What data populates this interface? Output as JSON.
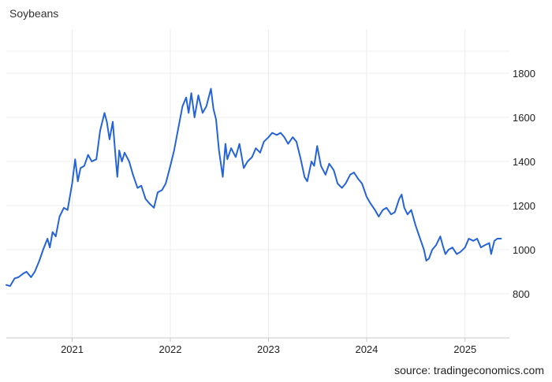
{
  "chart_data": {
    "type": "line",
    "title": "Soybeans",
    "source": "source: tradingeconomics.com",
    "xlabel": "",
    "ylabel": "",
    "ylim": [
      600,
      2000
    ],
    "xlim": [
      "2020-05-01",
      "2025-06-15"
    ],
    "y_ticks": [
      800,
      1000,
      1200,
      1400,
      1600,
      1800
    ],
    "x_ticks": [
      {
        "date": "2021-01-01",
        "label": "2021"
      },
      {
        "date": "2022-01-01",
        "label": "2022"
      },
      {
        "date": "2023-01-01",
        "label": "2023"
      },
      {
        "date": "2024-01-01",
        "label": "2024"
      },
      {
        "date": "2025-01-01",
        "label": "2025"
      }
    ],
    "grid": true,
    "line_color": "#2563db",
    "series": [
      {
        "name": "",
        "points": [
          [
            "2020-05-01",
            840
          ],
          [
            "2020-05-15",
            835
          ],
          [
            "2020-06-01",
            870
          ],
          [
            "2020-06-15",
            875
          ],
          [
            "2020-07-01",
            890
          ],
          [
            "2020-07-15",
            900
          ],
          [
            "2020-08-01",
            875
          ],
          [
            "2020-08-15",
            900
          ],
          [
            "2020-09-01",
            950
          ],
          [
            "2020-09-15",
            1000
          ],
          [
            "2020-10-01",
            1050
          ],
          [
            "2020-10-10",
            1010
          ],
          [
            "2020-10-20",
            1080
          ],
          [
            "2020-11-01",
            1060
          ],
          [
            "2020-11-15",
            1150
          ],
          [
            "2020-12-01",
            1190
          ],
          [
            "2020-12-15",
            1180
          ],
          [
            "2021-01-01",
            1300
          ],
          [
            "2021-01-12",
            1410
          ],
          [
            "2021-01-22",
            1310
          ],
          [
            "2021-02-01",
            1370
          ],
          [
            "2021-02-15",
            1380
          ],
          [
            "2021-03-01",
            1430
          ],
          [
            "2021-03-15",
            1400
          ],
          [
            "2021-04-01",
            1410
          ],
          [
            "2021-04-15",
            1540
          ],
          [
            "2021-05-01",
            1620
          ],
          [
            "2021-05-10",
            1580
          ],
          [
            "2021-05-20",
            1500
          ],
          [
            "2021-06-01",
            1580
          ],
          [
            "2021-06-12",
            1410
          ],
          [
            "2021-06-18",
            1330
          ],
          [
            "2021-06-25",
            1450
          ],
          [
            "2021-07-05",
            1400
          ],
          [
            "2021-07-15",
            1440
          ],
          [
            "2021-08-01",
            1400
          ],
          [
            "2021-08-15",
            1340
          ],
          [
            "2021-09-01",
            1280
          ],
          [
            "2021-09-15",
            1290
          ],
          [
            "2021-10-01",
            1230
          ],
          [
            "2021-10-15",
            1210
          ],
          [
            "2021-11-01",
            1190
          ],
          [
            "2021-11-15",
            1260
          ],
          [
            "2021-12-01",
            1270
          ],
          [
            "2021-12-15",
            1300
          ],
          [
            "2022-01-01",
            1380
          ],
          [
            "2022-01-15",
            1450
          ],
          [
            "2022-02-01",
            1560
          ],
          [
            "2022-02-15",
            1650
          ],
          [
            "2022-03-01",
            1690
          ],
          [
            "2022-03-10",
            1620
          ],
          [
            "2022-03-20",
            1710
          ],
          [
            "2022-04-01",
            1600
          ],
          [
            "2022-04-15",
            1700
          ],
          [
            "2022-05-01",
            1620
          ],
          [
            "2022-05-15",
            1650
          ],
          [
            "2022-06-01",
            1730
          ],
          [
            "2022-06-10",
            1640
          ],
          [
            "2022-06-20",
            1590
          ],
          [
            "2022-07-01",
            1450
          ],
          [
            "2022-07-15",
            1330
          ],
          [
            "2022-07-25",
            1480
          ],
          [
            "2022-08-01",
            1410
          ],
          [
            "2022-08-15",
            1460
          ],
          [
            "2022-09-01",
            1420
          ],
          [
            "2022-09-15",
            1480
          ],
          [
            "2022-10-01",
            1370
          ],
          [
            "2022-10-15",
            1400
          ],
          [
            "2022-11-01",
            1420
          ],
          [
            "2022-11-15",
            1460
          ],
          [
            "2022-12-01",
            1440
          ],
          [
            "2022-12-15",
            1490
          ],
          [
            "2023-01-01",
            1510
          ],
          [
            "2023-01-15",
            1530
          ],
          [
            "2023-02-01",
            1520
          ],
          [
            "2023-02-15",
            1530
          ],
          [
            "2023-03-01",
            1510
          ],
          [
            "2023-03-15",
            1480
          ],
          [
            "2023-04-01",
            1510
          ],
          [
            "2023-04-15",
            1490
          ],
          [
            "2023-05-01",
            1410
          ],
          [
            "2023-05-15",
            1330
          ],
          [
            "2023-05-25",
            1310
          ],
          [
            "2023-06-10",
            1400
          ],
          [
            "2023-06-20",
            1380
          ],
          [
            "2023-07-01",
            1470
          ],
          [
            "2023-07-15",
            1380
          ],
          [
            "2023-08-01",
            1340
          ],
          [
            "2023-08-15",
            1390
          ],
          [
            "2023-09-01",
            1360
          ],
          [
            "2023-09-15",
            1300
          ],
          [
            "2023-10-01",
            1280
          ],
          [
            "2023-10-15",
            1300
          ],
          [
            "2023-11-01",
            1340
          ],
          [
            "2023-11-15",
            1350
          ],
          [
            "2023-12-01",
            1320
          ],
          [
            "2023-12-15",
            1300
          ],
          [
            "2024-01-01",
            1240
          ],
          [
            "2024-01-15",
            1210
          ],
          [
            "2024-02-01",
            1180
          ],
          [
            "2024-02-15",
            1150
          ],
          [
            "2024-03-01",
            1180
          ],
          [
            "2024-03-15",
            1190
          ],
          [
            "2024-04-01",
            1160
          ],
          [
            "2024-04-15",
            1170
          ],
          [
            "2024-05-01",
            1230
          ],
          [
            "2024-05-10",
            1250
          ],
          [
            "2024-05-20",
            1190
          ],
          [
            "2024-06-01",
            1160
          ],
          [
            "2024-06-15",
            1180
          ],
          [
            "2024-07-01",
            1110
          ],
          [
            "2024-07-15",
            1060
          ],
          [
            "2024-08-01",
            1000
          ],
          [
            "2024-08-10",
            950
          ],
          [
            "2024-08-20",
            960
          ],
          [
            "2024-09-01",
            1000
          ],
          [
            "2024-09-15",
            1020
          ],
          [
            "2024-10-01",
            1060
          ],
          [
            "2024-10-10",
            1020
          ],
          [
            "2024-10-20",
            980
          ],
          [
            "2024-11-01",
            1000
          ],
          [
            "2024-11-15",
            1010
          ],
          [
            "2024-12-01",
            980
          ],
          [
            "2024-12-15",
            990
          ],
          [
            "2025-01-01",
            1010
          ],
          [
            "2025-01-15",
            1050
          ],
          [
            "2025-02-01",
            1040
          ],
          [
            "2025-02-15",
            1050
          ],
          [
            "2025-03-01",
            1010
          ],
          [
            "2025-03-15",
            1020
          ],
          [
            "2025-04-01",
            1030
          ],
          [
            "2025-04-08",
            980
          ],
          [
            "2025-04-20",
            1040
          ],
          [
            "2025-05-01",
            1050
          ],
          [
            "2025-05-15",
            1050
          ]
        ]
      }
    ]
  }
}
